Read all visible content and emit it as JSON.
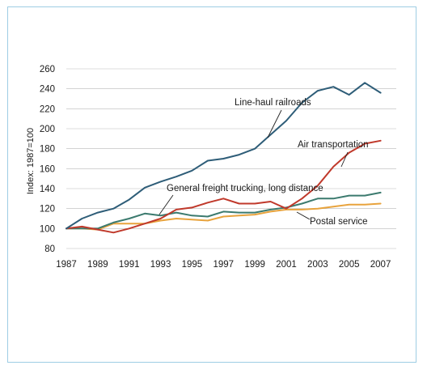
{
  "chart_data": {
    "type": "line",
    "title": "",
    "xlabel": "",
    "ylabel": "Index: 1987=100",
    "ylim": [
      80,
      260
    ],
    "xlim": [
      1987,
      2008
    ],
    "y_ticks": [
      80,
      100,
      120,
      140,
      160,
      180,
      200,
      220,
      240,
      260
    ],
    "x_ticks": [
      1987,
      1989,
      1991,
      1993,
      1995,
      1997,
      1999,
      2001,
      2003,
      2005,
      2007
    ],
    "grid": true,
    "legend": "none (direct labels)",
    "x": [
      1987,
      1988,
      1989,
      1990,
      1991,
      1992,
      1993,
      1994,
      1995,
      1996,
      1997,
      1998,
      1999,
      2000,
      2001,
      2002,
      2003,
      2004,
      2005,
      2006,
      2007
    ],
    "series": [
      {
        "name": "Line-haul railroads",
        "color": "#2e5d78",
        "values": [
          100,
          110,
          116,
          120,
          129,
          141,
          147,
          152,
          158,
          168,
          170,
          174,
          180,
          194,
          208,
          226,
          238,
          242,
          234,
          246,
          236
        ]
      },
      {
        "name": "Air transportation",
        "color": "#c0392b",
        "values": [
          100,
          102,
          99,
          96,
          100,
          105,
          110,
          119,
          121,
          126,
          130,
          125,
          125,
          127,
          120,
          130,
          143,
          162,
          176,
          185,
          188
        ]
      },
      {
        "name": "General freight trucking, long distance",
        "color": "#3b7a6e",
        "values": [
          100,
          100,
          100,
          106,
          110,
          115,
          113,
          116,
          113,
          112,
          117,
          116,
          116,
          119,
          121,
          125,
          130,
          130,
          133,
          133,
          136
        ]
      },
      {
        "name": "Postal service",
        "color": "#e8a33d",
        "values": [
          100,
          100,
          99,
          105,
          105,
          105,
          108,
          110,
          109,
          108,
          112,
          113,
          114,
          117,
          119,
          119,
          120,
          122,
          124,
          124,
          125
        ]
      }
    ]
  }
}
